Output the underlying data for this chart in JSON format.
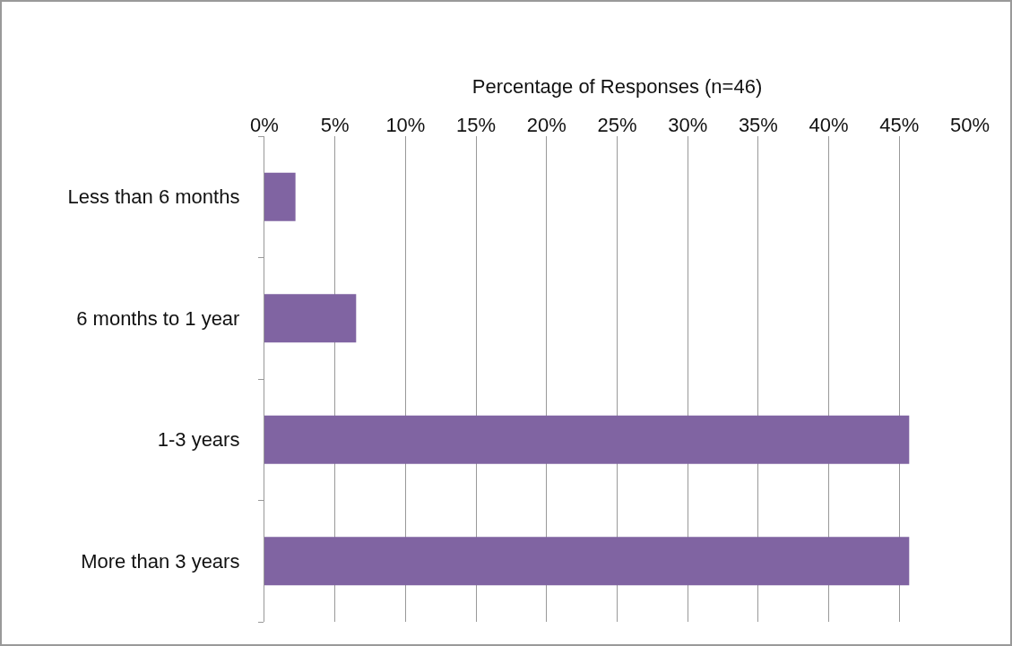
{
  "chart_data": {
    "type": "bar",
    "orientation": "horizontal",
    "xlabel": "Percentage of Responses (n=46)",
    "categories": [
      "Less than 6 months",
      "6 months to 1 year",
      "1-3 years",
      "More than 3 years"
    ],
    "values": [
      2.2,
      6.5,
      45.7,
      45.7
    ],
    "color": "#8064a2",
    "xlim": [
      0,
      50
    ],
    "xticks": [
      {
        "value": 0,
        "label": "0%"
      },
      {
        "value": 5,
        "label": "5%"
      },
      {
        "value": 10,
        "label": "10%"
      },
      {
        "value": 15,
        "label": "15%"
      },
      {
        "value": 20,
        "label": "20%"
      },
      {
        "value": 25,
        "label": "25%"
      },
      {
        "value": 30,
        "label": "30%"
      },
      {
        "value": 35,
        "label": "35%"
      },
      {
        "value": 40,
        "label": "40%"
      },
      {
        "value": 45,
        "label": "45%"
      },
      {
        "value": 50,
        "label": "50%"
      }
    ],
    "grid": "x",
    "legend": false
  }
}
